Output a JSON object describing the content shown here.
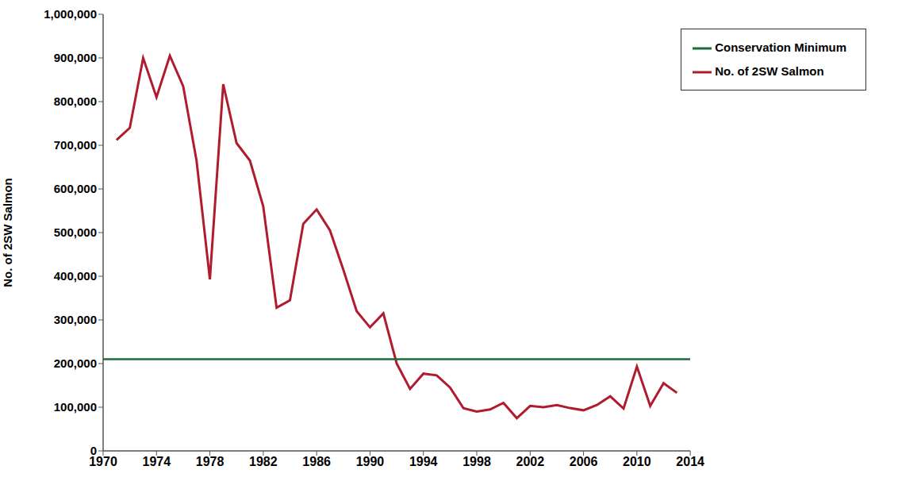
{
  "chart_data": {
    "type": "line",
    "y_label": "No. of 2SW Salmon",
    "x": [
      1970,
      1971,
      1972,
      1973,
      1974,
      1975,
      1976,
      1977,
      1978,
      1979,
      1980,
      1981,
      1982,
      1983,
      1984,
      1985,
      1986,
      1987,
      1988,
      1989,
      1990,
      1991,
      1992,
      1993,
      1994,
      1995,
      1996,
      1997,
      1998,
      1999,
      2000,
      2001,
      2002,
      2003,
      2004,
      2005,
      2006,
      2007,
      2008,
      2009,
      2010,
      2011,
      2012,
      2013,
      2014
    ],
    "series": [
      {
        "name": "No. of 2SW Salmon",
        "color": "#b01c2e",
        "values": [
          null,
          712000,
          740000,
          900000,
          810000,
          905000,
          835000,
          665000,
          393000,
          840000,
          705000,
          665000,
          560000,
          328000,
          345000,
          520000,
          553000,
          505000,
          415000,
          320000,
          283000,
          315000,
          200000,
          142000,
          177000,
          173000,
          145000,
          98000,
          90000,
          95000,
          110000,
          75000,
          103000,
          100000,
          105000,
          98000,
          93000,
          105000,
          125000,
          97000,
          193000,
          103000,
          155000,
          133000,
          null
        ]
      },
      {
        "name": "Conservation Minimum",
        "color": "#1e6b3a",
        "values": [
          210000,
          210000,
          210000,
          210000,
          210000,
          210000,
          210000,
          210000,
          210000,
          210000,
          210000,
          210000,
          210000,
          210000,
          210000,
          210000,
          210000,
          210000,
          210000,
          210000,
          210000,
          210000,
          210000,
          210000,
          210000,
          210000,
          210000,
          210000,
          210000,
          210000,
          210000,
          210000,
          210000,
          210000,
          210000,
          210000,
          210000,
          210000,
          210000,
          210000,
          210000,
          210000,
          210000,
          210000,
          210000
        ]
      }
    ],
    "xlim": [
      1970,
      2014
    ],
    "xticks": [
      1970,
      1974,
      1978,
      1982,
      1986,
      1990,
      1994,
      1998,
      2002,
      2006,
      2010,
      2014
    ],
    "ylim": [
      0,
      1000000
    ],
    "yticks": [
      0,
      {
        "value": 100000,
        "label": "100,000"
      },
      {
        "value": 200000,
        "label": "200,000"
      },
      {
        "value": 300000,
        "label": "300,000"
      },
      {
        "value": 400000,
        "label": "400,000"
      },
      {
        "value": 500000,
        "label": "500,000"
      },
      {
        "value": 600000,
        "label": "600,000"
      },
      {
        "value": 700000,
        "label": "700,000"
      },
      {
        "value": 800000,
        "label": "800,000"
      },
      {
        "value": 900000,
        "label": "900,000"
      },
      {
        "value": 1000000,
        "label": "1,000,000"
      }
    ],
    "grid": false,
    "legend": "top-right",
    "marker": "none"
  }
}
